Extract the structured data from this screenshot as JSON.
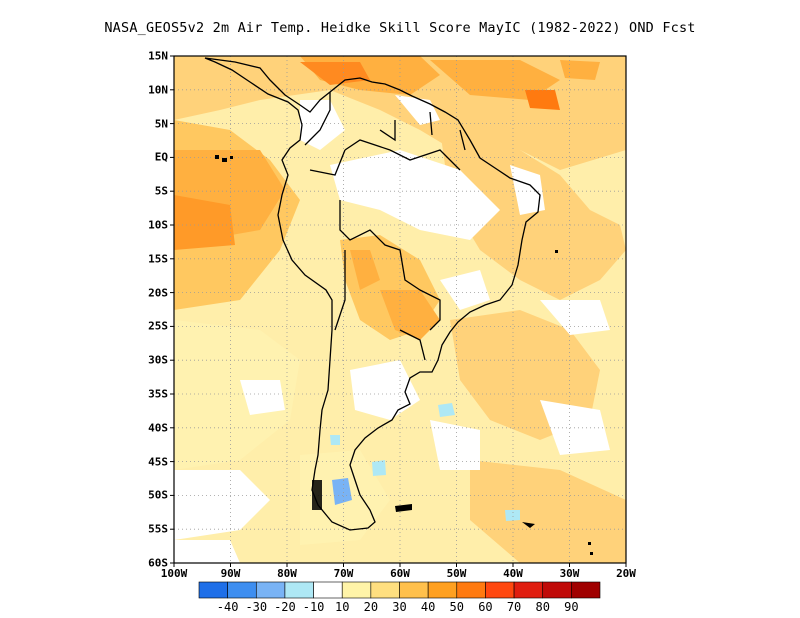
{
  "title": "NASA_GEOS5v2  2m Air Temp. Heidke Skill Score MayIC (1982-2022) OND Fcst",
  "lat_labels": [
    "15N",
    "10N",
    "5N",
    "EQ",
    "5S",
    "10S",
    "15S",
    "20S",
    "25S",
    "30S",
    "35S",
    "40S",
    "45S",
    "50S",
    "55S",
    "60S"
  ],
  "lon_labels": [
    "100W",
    "90W",
    "80W",
    "70W",
    "60W",
    "50W",
    "40W",
    "30W",
    "20W"
  ],
  "colorbar": {
    "labels": [
      "-40",
      "-30",
      "-20",
      "-10",
      "10",
      "20",
      "30",
      "40",
      "50",
      "60",
      "70",
      "80",
      "90"
    ],
    "colors": [
      "#1f6fe8",
      "#3e8ef0",
      "#79b3f5",
      "#aee8f5",
      "#ffffff",
      "#fff4a8",
      "#ffdf80",
      "#ffc04c",
      "#ffa020",
      "#ff7a10",
      "#ff4810",
      "#e01e10",
      "#c00a08",
      "#a00000"
    ]
  },
  "colors": {
    "land_outline": "#000000",
    "grid": "#9a9a9a"
  }
}
